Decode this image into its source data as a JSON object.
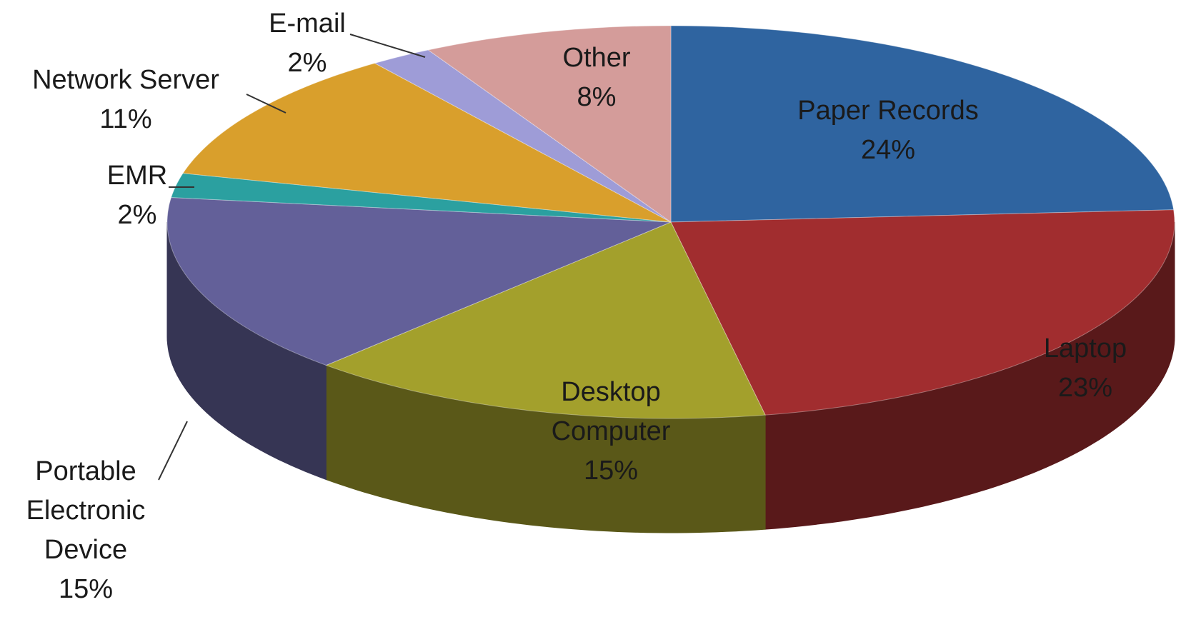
{
  "chart_data": {
    "type": "pie3d",
    "categories": [
      "Paper Records",
      "Laptop",
      "Desktop Computer",
      "Portable Electronic Device",
      "EMR",
      "Network Server",
      "E-mail",
      "Other"
    ],
    "values": [
      24,
      23,
      15,
      15,
      2,
      11,
      2,
      8
    ],
    "value_labels": [
      "24%",
      "23%",
      "15%",
      "15%",
      "2%",
      "11%",
      "2%",
      "8%"
    ],
    "colors": [
      "#2f64a0",
      "#a12d2f",
      "#a3a02c",
      "#636099",
      "#2ba0a0",
      "#d99f2c",
      "#9e9cd7",
      "#d49c9a"
    ]
  }
}
